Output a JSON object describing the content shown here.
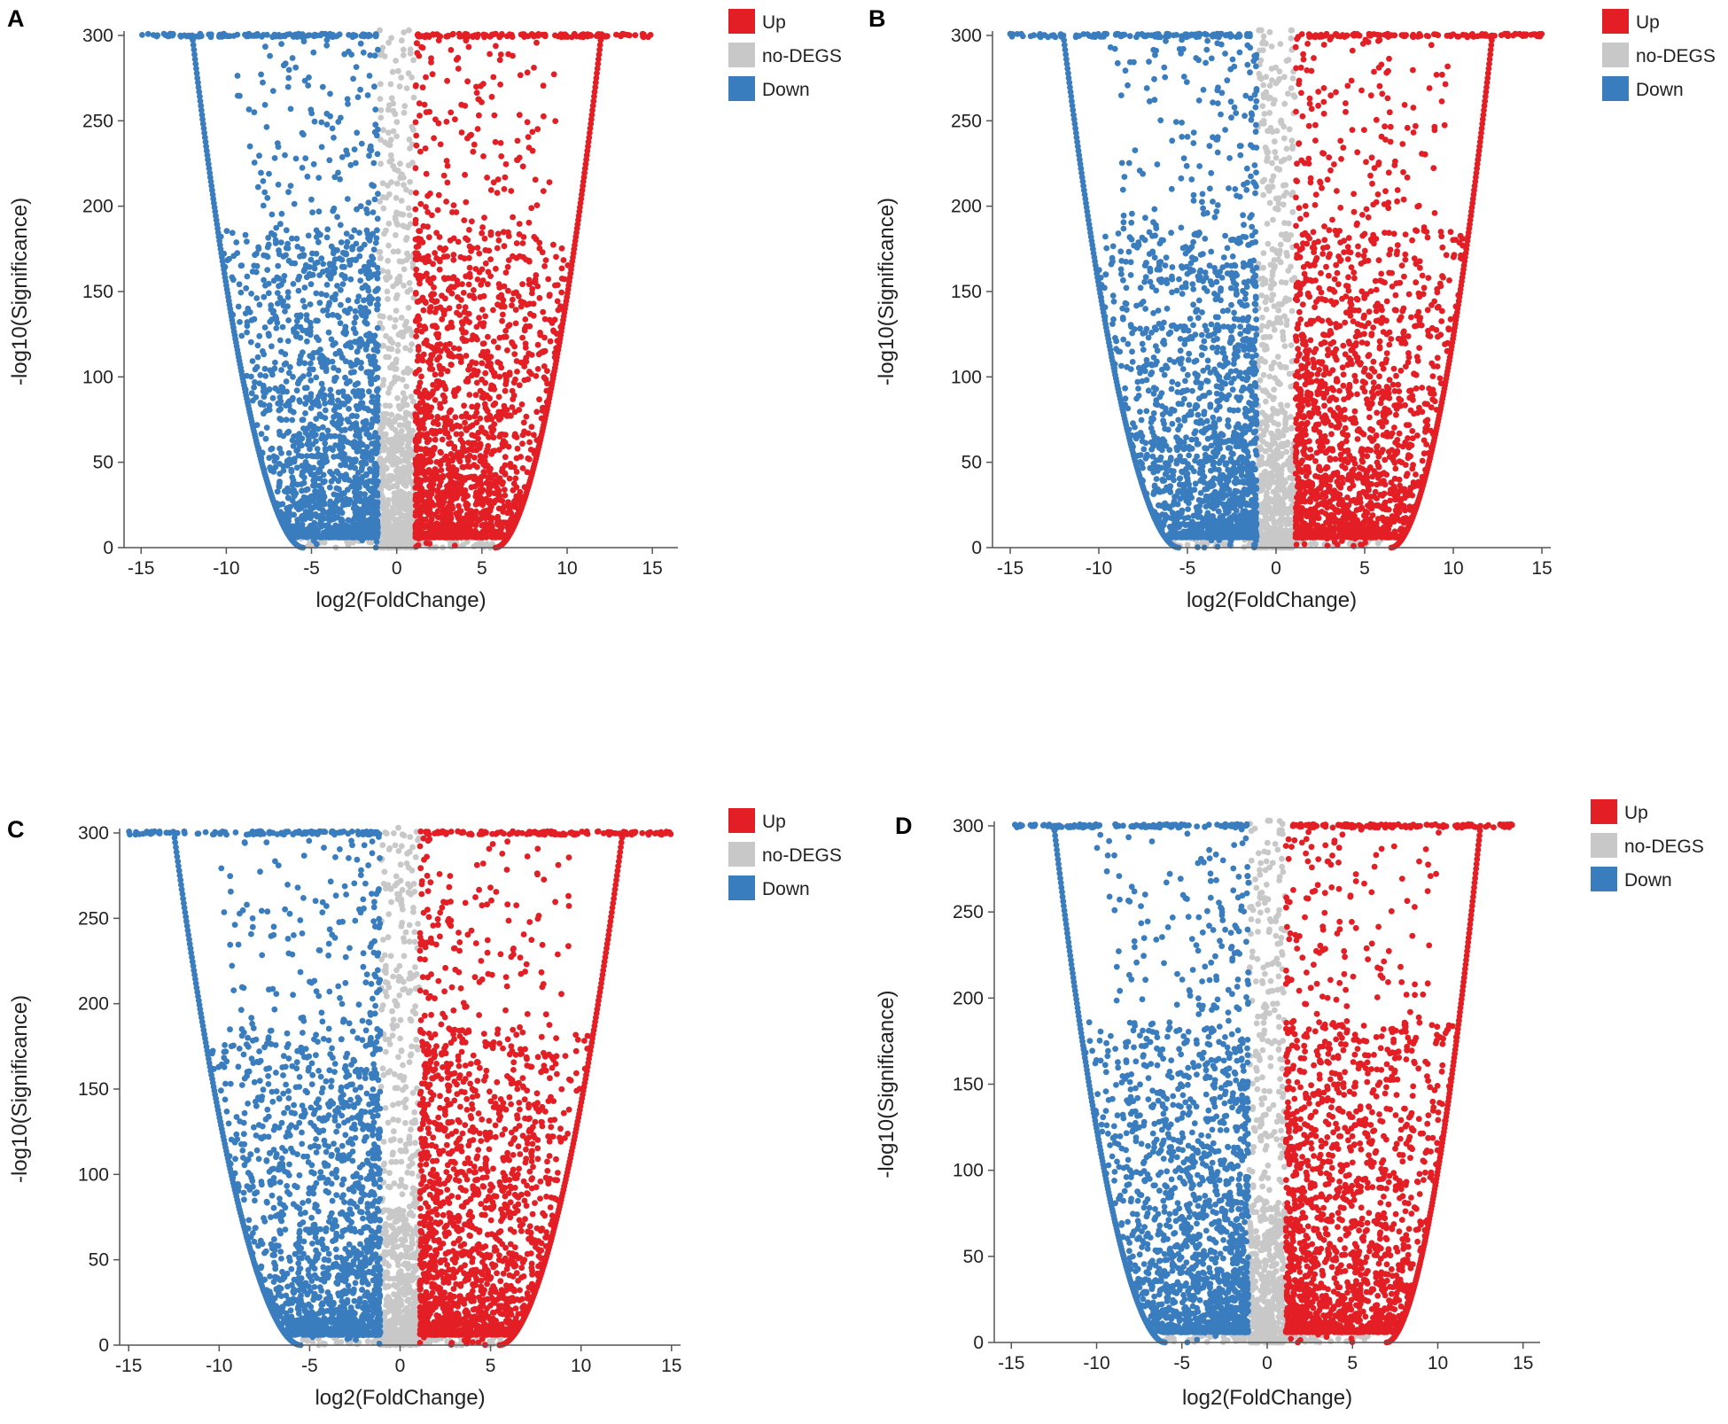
{
  "colors": {
    "up": "#e31e24",
    "nodegs": "#c8c8c8",
    "down": "#3a7dbf",
    "axis": "#555555",
    "text": "#222222"
  },
  "chart_data": [
    {
      "type": "scatter",
      "panel": "A",
      "xlabel": "log2(FoldChange)",
      "ylabel": "-log10(Significance)",
      "xlim": [
        -16,
        16.5
      ],
      "ylim": [
        0,
        300
      ],
      "xticks": [
        -15,
        -10,
        -5,
        0,
        5,
        10,
        15
      ],
      "xtick_labels": [
        "-15",
        "-10",
        "-5",
        "0",
        "5",
        "10",
        "15"
      ],
      "yticks": [
        0,
        50,
        100,
        150,
        200,
        250,
        300
      ],
      "ytick_labels": [
        "0",
        "50",
        "100",
        "150",
        "200",
        "250",
        "300"
      ],
      "legend": [
        {
          "key": "up",
          "label": "Up"
        },
        {
          "key": "nodegs",
          "label": "no-DEGS"
        },
        {
          "key": "down",
          "label": "Down"
        }
      ],
      "legend_position": "top-right",
      "series": [
        {
          "name": "Up",
          "key": "up",
          "x_range": [
            1,
            15
          ],
          "envelope_x_at_0": 5.8,
          "envelope_x_at_300": 12,
          "top_row_max_x": 15
        },
        {
          "name": "no-DEGS",
          "key": "nodegs",
          "x_range": [
            -1,
            1
          ]
        },
        {
          "name": "Down",
          "key": "down",
          "x_range": [
            -15,
            -1
          ],
          "envelope_x_at_0": -5.5,
          "envelope_x_at_300": -12,
          "top_row_min_x": -15
        }
      ]
    },
    {
      "type": "scatter",
      "panel": "B",
      "xlabel": "log2(FoldChange)",
      "ylabel": "-log10(Significance)",
      "xlim": [
        -16,
        15.5
      ],
      "ylim": [
        0,
        300
      ],
      "xticks": [
        -15,
        -10,
        -5,
        0,
        5,
        10,
        15
      ],
      "xtick_labels": [
        "-15",
        "-10",
        "-5",
        "0",
        "5",
        "10",
        "15"
      ],
      "yticks": [
        0,
        50,
        100,
        150,
        200,
        250,
        300
      ],
      "ytick_labels": [
        "0",
        "50",
        "100",
        "150",
        "200",
        "250",
        "300"
      ],
      "legend": [
        {
          "key": "up",
          "label": "Up"
        },
        {
          "key": "nodegs",
          "label": "no-DEGS"
        },
        {
          "key": "down",
          "label": "Down"
        }
      ],
      "legend_position": "top-right",
      "series": [
        {
          "name": "Up",
          "key": "up",
          "x_range": [
            1,
            15
          ],
          "envelope_x_at_0": 6.5,
          "envelope_x_at_300": 12.2,
          "top_row_max_x": 15
        },
        {
          "name": "no-DEGS",
          "key": "nodegs",
          "x_range": [
            -1,
            1
          ]
        },
        {
          "name": "Down",
          "key": "down",
          "x_range": [
            -15,
            -1
          ],
          "envelope_x_at_0": -5.5,
          "envelope_x_at_300": -12,
          "top_row_min_x": -15
        }
      ]
    },
    {
      "type": "scatter",
      "panel": "C",
      "xlabel": "log2(FoldChange)",
      "ylabel": "-log10(Significance)",
      "xlim": [
        -15.5,
        15.5
      ],
      "ylim": [
        0,
        300
      ],
      "xticks": [
        -15,
        -10,
        -5,
        0,
        5,
        10,
        15
      ],
      "xtick_labels": [
        "-15",
        "-10",
        "-5",
        "0",
        "5",
        "10",
        "15"
      ],
      "yticks": [
        0,
        50,
        100,
        150,
        200,
        250,
        300
      ],
      "ytick_labels": [
        "0",
        "50",
        "100",
        "150",
        "200",
        "250",
        "300"
      ],
      "legend": [
        {
          "key": "up",
          "label": "Up"
        },
        {
          "key": "nodegs",
          "label": "no-DEGS"
        },
        {
          "key": "down",
          "label": "Down"
        }
      ],
      "legend_position": "top-right",
      "series": [
        {
          "name": "Up",
          "key": "up",
          "x_range": [
            1,
            15
          ],
          "envelope_x_at_0": 5.5,
          "envelope_x_at_300": 12.3,
          "top_row_max_x": 15
        },
        {
          "name": "no-DEGS",
          "key": "nodegs",
          "x_range": [
            -1,
            1
          ]
        },
        {
          "name": "Down",
          "key": "down",
          "x_range": [
            -15,
            -1
          ],
          "envelope_x_at_0": -5.5,
          "envelope_x_at_300": -12.5,
          "top_row_min_x": -15
        }
      ]
    },
    {
      "type": "scatter",
      "panel": "D",
      "xlabel": "log2(FoldChange)",
      "ylabel": "-log10(Significance)",
      "xlim": [
        -16,
        16
      ],
      "ylim": [
        0,
        300
      ],
      "xticks": [
        -15,
        -10,
        -5,
        0,
        5,
        10,
        15
      ],
      "xtick_labels": [
        "-15",
        "-10",
        "-5",
        "0",
        "5",
        "10",
        "15"
      ],
      "yticks": [
        0,
        50,
        100,
        150,
        200,
        250,
        300
      ],
      "ytick_labels": [
        "0",
        "50",
        "100",
        "150",
        "200",
        "250",
        "300"
      ],
      "legend": [
        {
          "key": "up",
          "label": "Up"
        },
        {
          "key": "nodegs",
          "label": "no-DEGS"
        },
        {
          "key": "down",
          "label": "Down"
        }
      ],
      "legend_position": "top-right",
      "series": [
        {
          "name": "Up",
          "key": "up",
          "x_range": [
            1,
            14.5
          ],
          "envelope_x_at_0": 7,
          "envelope_x_at_300": 12.5,
          "top_row_max_x": 14.5
        },
        {
          "name": "no-DEGS",
          "key": "nodegs",
          "x_range": [
            -1,
            1
          ]
        },
        {
          "name": "Down",
          "key": "down",
          "x_range": [
            -15,
            -1
          ],
          "envelope_x_at_0": -6,
          "envelope_x_at_300": -12.5,
          "top_row_min_x": -15
        }
      ]
    }
  ]
}
